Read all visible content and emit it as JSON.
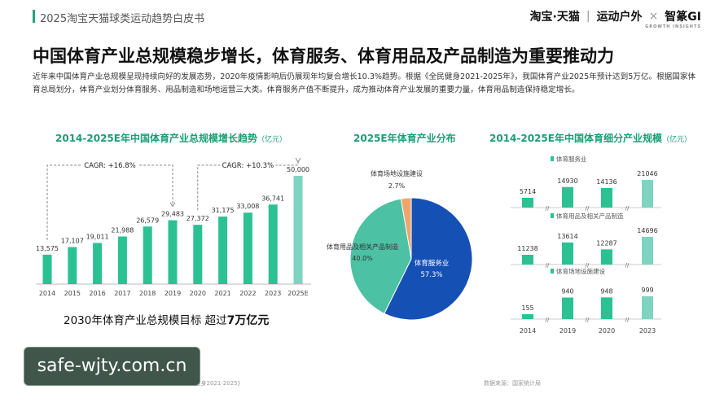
{
  "header": {
    "report_title": "2025淘宝天猫球类运动趋势白皮书",
    "brand_taobao": "淘宝·天猫",
    "brand_sep": "|",
    "brand_sports": "运动户外",
    "brand_x": "×",
    "brand_zhizhan": "智篆GI",
    "brand_sub": "GROWTH INSIGHTS"
  },
  "headline": "中国体育产业总规模稳步增长，体育服务、体育用品及产品制造为重要推动力",
  "paragraph": "近年来中国体育产业总规模呈现持续向好的发展态势，2020年疫情影响后仍展现年均复合增长10.3%趋势。根据《全民健身2021-2025年》，我国体育产业2025年预计达到5万亿。根据国家体育总局划分，体育产业划分体育服务、用品制造和场地运营三大类。体育服务产值不断提升，成为推动体育产业发展的重要力量，体育用品制造保持稳定增长。",
  "target_text_prefix": "2030年体育产业总规模目标 超过",
  "target_text_value": "7万亿元",
  "source_left": "数据来源：国家统计局、《全民健身2021-2025》",
  "source_right": "数据来源：国家统计局",
  "watermark": "safe-wjty.com.cn",
  "colors": {
    "green": "#2bc193",
    "teal": "#4cc1a4",
    "blue": "#1550b5",
    "orange": "#f0a56c",
    "light_teal": "#7fd3c1",
    "title_green": "#1a9e73"
  },
  "chart_data": [
    {
      "type": "bar",
      "title": "2014-2025E年中国体育产业总规模增长趋势",
      "unit": "（亿元）",
      "categories": [
        "2014",
        "2015",
        "2016",
        "2017",
        "2018",
        "2019",
        "2020",
        "2021",
        "2022",
        "2023",
        "2025E"
      ],
      "values": [
        13575,
        17107,
        19011,
        21988,
        26579,
        29483,
        27372,
        31175,
        33008,
        36741,
        50000
      ],
      "value_labels": [
        "13,575",
        "17,107",
        "19,011",
        "21,988",
        "26,579",
        "29,483",
        "27,372",
        "31,175",
        "33,008",
        "36,741",
        "50,000"
      ],
      "ylim": [
        0,
        50000
      ],
      "annotations": [
        "CAGR: +16.8%",
        "CAGR: +10.3%"
      ]
    },
    {
      "type": "pie",
      "title": "2025E年体育产业分布",
      "slices": [
        {
          "label": "体育服务业",
          "value": 57.3,
          "value_label": "57.3%"
        },
        {
          "label": "体育用品及相关产品制造",
          "value": 40.0,
          "value_label": "40.0%"
        },
        {
          "label": "体育场地设施建设",
          "value": 2.7,
          "value_label": "2.7%"
        }
      ]
    },
    {
      "type": "bar",
      "title": "2014-2025E年中国体育细分产业规模",
      "unit": "（亿元）",
      "categories": [
        "2014",
        "2019",
        "2020",
        "2023"
      ],
      "series": [
        {
          "name": "体育服务业",
          "values": [
            5714,
            14930,
            14136,
            21046
          ],
          "value_labels": [
            "5714",
            "14930",
            "14136",
            "21046"
          ]
        },
        {
          "name": "体育用品及相关产品制造",
          "values": [
            11238,
            13614,
            12287,
            14696
          ],
          "value_labels": [
            "11238",
            "13614",
            "12287",
            "14696"
          ]
        },
        {
          "name": "体育场地设施建设",
          "values": [
            155,
            940,
            948,
            999
          ],
          "value_labels": [
            "155",
            "940",
            "948",
            "999"
          ]
        }
      ],
      "break_marker": "//"
    }
  ]
}
